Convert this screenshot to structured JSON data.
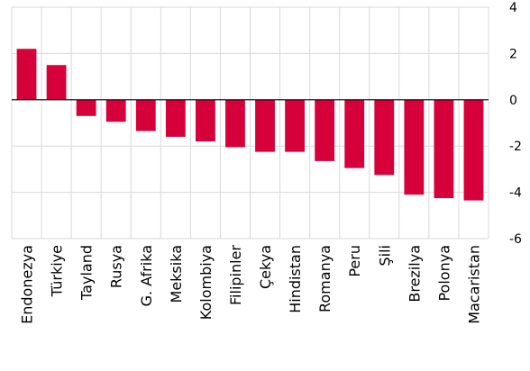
{
  "chart_data": {
    "type": "bar",
    "title": "",
    "xlabel": "",
    "ylabel": "",
    "categories": [
      "Endonezya",
      "Türkiye",
      "Tayland",
      "Rusya",
      "G. Afrika",
      "Meksika",
      "Kolombiya",
      "Filipinler",
      "Çekya",
      "Hindistan",
      "Romanya",
      "Peru",
      "Şili",
      "Brezilya",
      "Polonya",
      "Macaristan"
    ],
    "values": [
      2.2,
      1.5,
      -0.7,
      -0.95,
      -1.35,
      -1.6,
      -1.8,
      -2.05,
      -2.25,
      -2.25,
      -2.65,
      -2.95,
      -3.25,
      -4.1,
      -4.25,
      -4.35
    ],
    "ylim": [
      -6,
      4
    ],
    "yticks": [
      "4",
      "2",
      "0",
      "-2",
      "-4",
      "-6"
    ],
    "ytick_values": [
      4,
      2,
      0,
      -2,
      -4,
      -6
    ],
    "y_axis_side": "right",
    "grid": true,
    "bar_color": "#d6003a"
  }
}
